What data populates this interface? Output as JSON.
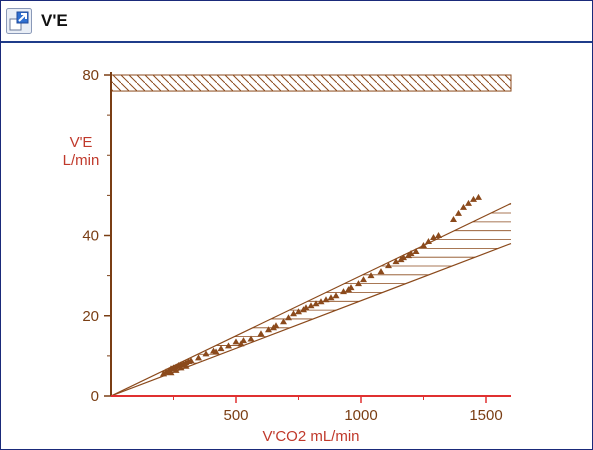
{
  "window": {
    "title": "V'E"
  },
  "icons": {
    "expand": "expand-icon"
  },
  "colors": {
    "axis_y": "#7a3e14",
    "axis_x": "#e03030",
    "data": "#8b4a1c",
    "label": "#c0392b"
  },
  "chart_data": {
    "type": "scatter",
    "title": "V'E",
    "ylabel_line1": "V'E",
    "ylabel_line2": "L/min",
    "xlabel": "V'CO2  mL/min",
    "xlim": [
      0,
      1600
    ],
    "ylim": [
      0,
      80
    ],
    "xticks": [
      500,
      1000,
      1500
    ],
    "yticks": [
      0,
      20,
      40,
      80
    ],
    "upper_limit_band": {
      "y_from": 76,
      "y_to": 80,
      "x_from": 0,
      "x_to": 1600
    },
    "reference_band": {
      "lower_line": [
        [
          0,
          0
        ],
        [
          1600,
          38
        ]
      ],
      "upper_line": [
        [
          0,
          0
        ],
        [
          1600,
          48
        ]
      ]
    },
    "points": [
      [
        210,
        5.5
      ],
      [
        220,
        6.0
      ],
      [
        230,
        6.2
      ],
      [
        240,
        6.8
      ],
      [
        250,
        7.0
      ],
      [
        260,
        7.2
      ],
      [
        270,
        7.6
      ],
      [
        280,
        7.8
      ],
      [
        290,
        8.0
      ],
      [
        300,
        8.3
      ],
      [
        310,
        8.6
      ],
      [
        320,
        8.8
      ],
      [
        240,
        5.8
      ],
      [
        260,
        6.4
      ],
      [
        280,
        7.0
      ],
      [
        300,
        7.4
      ],
      [
        350,
        9.5
      ],
      [
        380,
        10.5
      ],
      [
        410,
        11.2
      ],
      [
        440,
        11.8
      ],
      [
        470,
        12.5
      ],
      [
        500,
        13.5
      ],
      [
        530,
        13.8
      ],
      [
        560,
        14.2
      ],
      [
        600,
        15.5
      ],
      [
        630,
        16.5
      ],
      [
        660,
        17.5
      ],
      [
        690,
        18.5
      ],
      [
        710,
        19.5
      ],
      [
        730,
        20.5
      ],
      [
        750,
        21.0
      ],
      [
        770,
        21.5
      ],
      [
        800,
        22.5
      ],
      [
        820,
        23.0
      ],
      [
        840,
        23.5
      ],
      [
        860,
        24.0
      ],
      [
        880,
        24.5
      ],
      [
        900,
        25.0
      ],
      [
        930,
        26.0
      ],
      [
        960,
        27.0
      ],
      [
        990,
        28.0
      ],
      [
        1010,
        29.0
      ],
      [
        1040,
        30.0
      ],
      [
        1080,
        31.0
      ],
      [
        1110,
        32.5
      ],
      [
        1140,
        33.5
      ],
      [
        1170,
        34.5
      ],
      [
        1200,
        35.5
      ],
      [
        1220,
        36.0
      ],
      [
        1250,
        37.5
      ],
      [
        1270,
        38.5
      ],
      [
        1290,
        39.5
      ],
      [
        1310,
        40.0
      ],
      [
        1370,
        44.0
      ],
      [
        1390,
        45.5
      ],
      [
        1410,
        47.0
      ],
      [
        1430,
        48.0
      ],
      [
        1450,
        49.0
      ],
      [
        1470,
        49.5
      ],
      [
        1160,
        34.0
      ],
      [
        1190,
        35.0
      ],
      [
        950,
        26.5
      ],
      [
        780,
        22.0
      ],
      [
        650,
        17.0
      ],
      [
        520,
        13.0
      ],
      [
        420,
        11.0
      ]
    ]
  }
}
